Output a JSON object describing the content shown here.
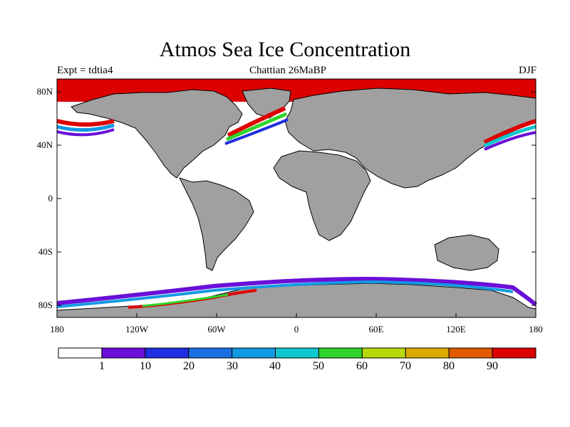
{
  "title": "Atmos Sea Ice Concentration",
  "subtitle_left": "Expt = tdtia4",
  "subtitle_center": "Chattian  26MaBP",
  "subtitle_right": "DJF",
  "lat_labels": [
    "80N",
    "40N",
    "0",
    "40S",
    "80S"
  ],
  "lon_labels": [
    "180",
    "120W",
    "60W",
    "0",
    "60E",
    "120E",
    "180"
  ],
  "colorbar": {
    "labels": [
      "1",
      "10",
      "20",
      "30",
      "40",
      "50",
      "60",
      "70",
      "80",
      "90"
    ],
    "colors": [
      "#ffffff",
      "#6a0fd8",
      "#1e2ee0",
      "#1a6fe3",
      "#1399e3",
      "#10c6cf",
      "#2ed42a",
      "#b7d80a",
      "#dcab00",
      "#e25a00",
      "#dd0000"
    ]
  },
  "colors": {
    "land": "#a0a0a0",
    "ocean": "#ffffff",
    "ice_full": "#dd0000",
    "coast": "#000000"
  }
}
